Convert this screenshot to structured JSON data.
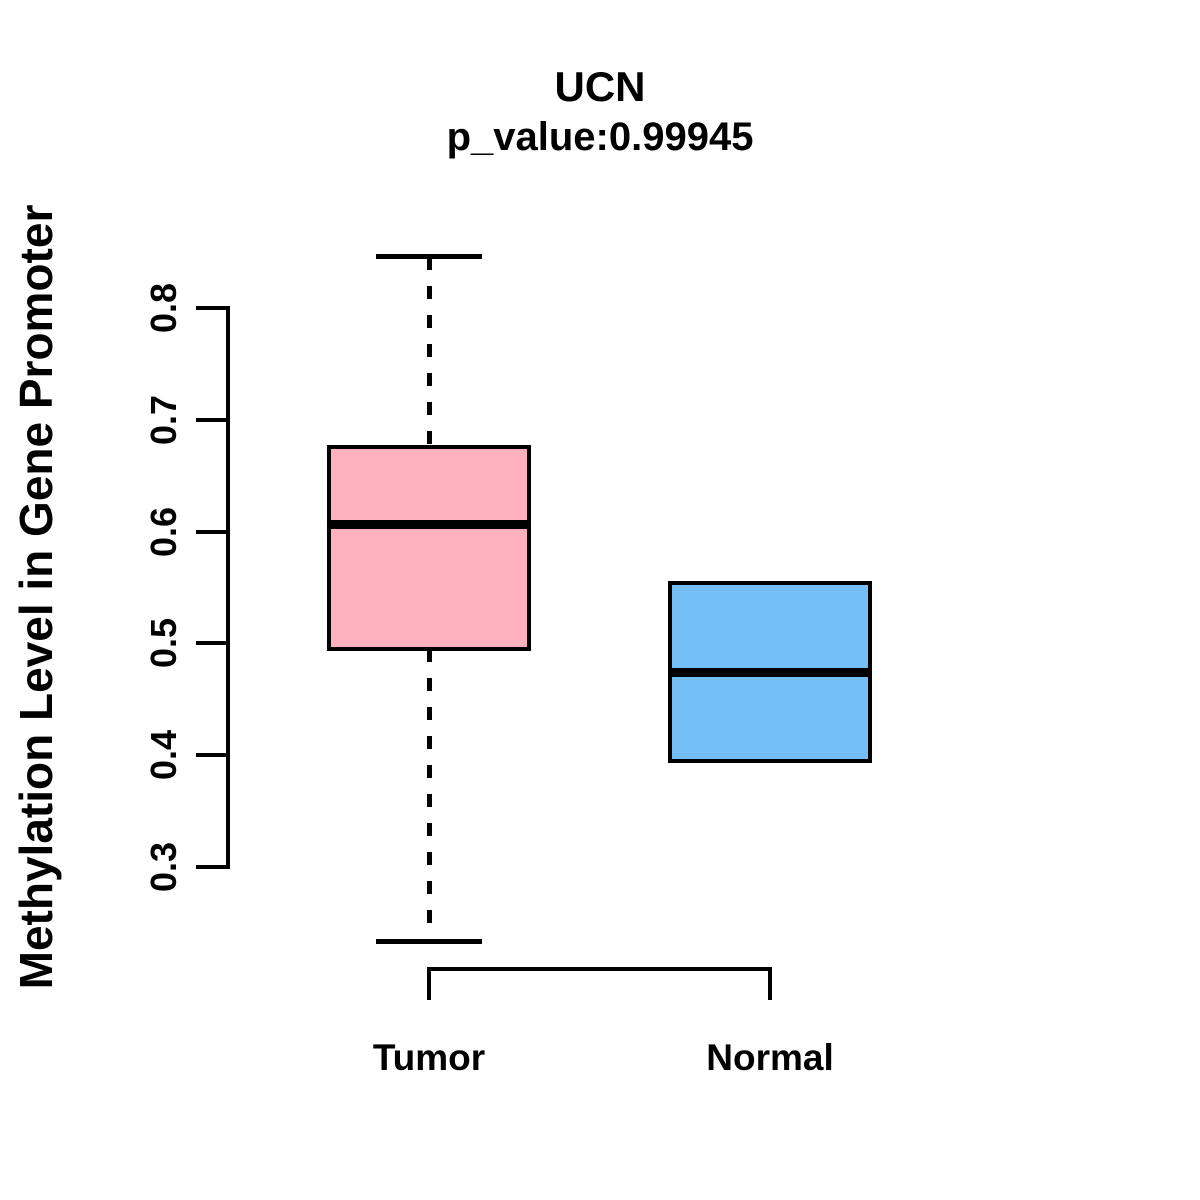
{
  "chart_data": {
    "type": "boxplot",
    "title": "UCN",
    "subtitle": "p_value:0.99945",
    "p_value": "0.99945",
    "ylabel": "Methylation Level in Gene Promoter",
    "xlabel": "",
    "ylim": [
      0.3,
      0.8
    ],
    "yticks": [
      0.3,
      0.4,
      0.5,
      0.6,
      0.7,
      0.8
    ],
    "grid": false,
    "legend_position": "none",
    "stroke_color": "#000000",
    "background_color": "#FFFFFF",
    "groups": [
      {
        "label": "Tumor",
        "fill_color": "#FFB0BE",
        "whisker_low": 0.233,
        "q1": 0.495,
        "median": 0.606,
        "q3": 0.676,
        "whisker_high": 0.846,
        "outliers": []
      },
      {
        "label": "Normal",
        "fill_color": "#74BEF6",
        "whisker_low": 0.395,
        "q1": 0.395,
        "median": 0.474,
        "q3": 0.554,
        "whisker_high": 0.554,
        "outliers": []
      }
    ]
  }
}
